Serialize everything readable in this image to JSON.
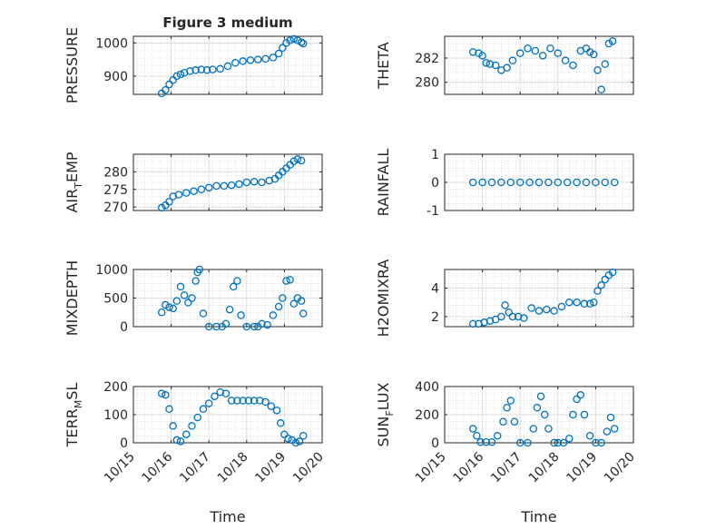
{
  "figure": {
    "title": "Figure 3 medium",
    "marker_color": "#0072BD",
    "time_tick_labels": [
      "10/15",
      "10/16",
      "10/17",
      "10/18",
      "10/19",
      "10/20"
    ],
    "xlabel": "Time"
  },
  "chart_data": [
    {
      "type": "scatter",
      "ylabel": "PRESSURE",
      "xlim": [
        0,
        5
      ],
      "ylim": [
        845,
        1020
      ],
      "yticks": [
        900,
        1000
      ],
      "ytick_labels": [
        "900",
        "1000"
      ],
      "grid": true,
      "minor_grid": true,
      "x": [
        0.75,
        0.85,
        0.95,
        1.05,
        1.15,
        1.25,
        1.35,
        1.5,
        1.65,
        1.8,
        1.95,
        2.1,
        2.3,
        2.5,
        2.7,
        2.9,
        3.1,
        3.3,
        3.5,
        3.7,
        3.85,
        3.95,
        4.05,
        4.15,
        4.25,
        4.35,
        4.45,
        4.5
      ],
      "values": [
        848,
        858,
        875,
        888,
        900,
        905,
        910,
        915,
        918,
        920,
        918,
        920,
        922,
        930,
        940,
        945,
        948,
        950,
        952,
        956,
        968,
        985,
        1000,
        1008,
        1012,
        1008,
        1002,
        998
      ]
    },
    {
      "type": "scatter",
      "ylabel": "THETA",
      "xlim": [
        0,
        5
      ],
      "ylim": [
        279,
        283.8
      ],
      "yticks": [
        280,
        282
      ],
      "ytick_labels": [
        "280",
        "282"
      ],
      "grid": true,
      "minor_grid": true,
      "x": [
        0.75,
        0.9,
        1.0,
        1.1,
        1.2,
        1.35,
        1.5,
        1.65,
        1.8,
        2.0,
        2.2,
        2.4,
        2.6,
        2.8,
        3.0,
        3.2,
        3.4,
        3.6,
        3.75,
        3.85,
        3.95,
        4.05,
        4.15,
        4.25,
        4.35,
        4.45
      ],
      "values": [
        282.5,
        282.4,
        282.2,
        281.6,
        281.5,
        281.4,
        281.0,
        281.2,
        281.8,
        282.4,
        282.8,
        282.6,
        282.2,
        282.8,
        282.4,
        281.8,
        281.4,
        282.6,
        282.8,
        282.5,
        282.3,
        281.0,
        279.4,
        281.5,
        283.2,
        283.4
      ]
    },
    {
      "type": "scatter",
      "ylabel": "AIR_TEMP",
      "xlim": [
        0,
        5
      ],
      "ylim": [
        269,
        285
      ],
      "yticks": [
        270,
        275,
        280
      ],
      "ytick_labels": [
        "270",
        "275",
        "280"
      ],
      "grid": true,
      "minor_grid": true,
      "x": [
        0.75,
        0.85,
        0.95,
        1.05,
        1.2,
        1.4,
        1.6,
        1.8,
        2.0,
        2.2,
        2.4,
        2.6,
        2.8,
        3.0,
        3.2,
        3.4,
        3.6,
        3.75,
        3.85,
        3.95,
        4.05,
        4.15,
        4.25,
        4.35,
        4.45
      ],
      "values": [
        269.8,
        270.5,
        271.5,
        273.0,
        273.5,
        274.0,
        274.5,
        275.0,
        275.5,
        276.0,
        276.0,
        276.2,
        276.5,
        277.0,
        277.2,
        277.0,
        277.5,
        278.0,
        279.0,
        280.0,
        281.0,
        282.0,
        283.0,
        283.6,
        283.2
      ]
    },
    {
      "type": "scatter",
      "ylabel": "RAINFALL",
      "xlim": [
        0,
        5
      ],
      "ylim": [
        -1,
        1
      ],
      "yticks": [
        -1,
        0,
        1
      ],
      "ytick_labels": [
        "-1",
        "0",
        "1"
      ],
      "grid": true,
      "minor_grid": true,
      "x": [
        0.75,
        1.0,
        1.25,
        1.5,
        1.75,
        2.0,
        2.25,
        2.5,
        2.75,
        3.0,
        3.25,
        3.5,
        3.75,
        4.0,
        4.25,
        4.5
      ],
      "values": [
        0,
        0,
        0,
        0,
        0,
        0,
        0,
        0,
        0,
        0,
        0,
        0,
        0,
        0,
        0,
        0
      ]
    },
    {
      "type": "scatter",
      "ylabel": "MIXDEPTH",
      "xlim": [
        0,
        5
      ],
      "ylim": [
        0,
        1000
      ],
      "yticks": [
        0,
        500,
        1000
      ],
      "ytick_labels": [
        "0",
        "500",
        "1000"
      ],
      "grid": true,
      "minor_grid": true,
      "x": [
        0.75,
        0.85,
        0.95,
        1.05,
        1.15,
        1.25,
        1.35,
        1.45,
        1.55,
        1.65,
        1.7,
        1.75,
        1.85,
        2.0,
        2.2,
        2.35,
        2.45,
        2.55,
        2.65,
        2.75,
        2.85,
        3.0,
        3.2,
        3.3,
        3.4,
        3.55,
        3.7,
        3.85,
        3.95,
        4.05,
        4.15,
        4.25,
        4.35,
        4.45,
        4.5
      ],
      "values": [
        250,
        380,
        340,
        320,
        450,
        700,
        550,
        420,
        500,
        800,
        950,
        1000,
        230,
        0,
        0,
        0,
        50,
        300,
        700,
        800,
        200,
        0,
        0,
        0,
        50,
        30,
        200,
        350,
        500,
        800,
        820,
        400,
        500,
        450,
        230
      ]
    },
    {
      "type": "scatter",
      "ylabel": "H2OMIXRA",
      "xlim": [
        0,
        5
      ],
      "ylim": [
        1.3,
        5.3
      ],
      "yticks": [
        2,
        4
      ],
      "ytick_labels": [
        "2",
        "4"
      ],
      "grid": true,
      "minor_grid": true,
      "x": [
        0.75,
        0.9,
        1.05,
        1.2,
        1.35,
        1.5,
        1.6,
        1.7,
        1.8,
        1.95,
        2.1,
        2.3,
        2.5,
        2.7,
        2.9,
        3.1,
        3.3,
        3.5,
        3.7,
        3.85,
        3.95,
        4.05,
        4.15,
        4.25,
        4.35,
        4.45
      ],
      "values": [
        1.5,
        1.5,
        1.6,
        1.7,
        1.8,
        2.0,
        2.8,
        2.3,
        2.0,
        2.0,
        1.9,
        2.6,
        2.4,
        2.5,
        2.4,
        2.7,
        3.0,
        3.0,
        2.9,
        2.9,
        3.0,
        3.8,
        4.2,
        4.6,
        4.9,
        5.1
      ]
    },
    {
      "type": "scatter",
      "ylabel": "TERR_MSL",
      "xlim": [
        0,
        5
      ],
      "ylim": [
        0,
        200
      ],
      "yticks": [
        0,
        100,
        200
      ],
      "ytick_labels": [
        "0",
        "100",
        "200"
      ],
      "grid": true,
      "minor_grid": true,
      "x": [
        0.75,
        0.85,
        0.95,
        1.05,
        1.15,
        1.25,
        1.4,
        1.55,
        1.7,
        1.85,
        2.0,
        2.15,
        2.3,
        2.45,
        2.6,
        2.75,
        2.9,
        3.05,
        3.2,
        3.35,
        3.5,
        3.65,
        3.8,
        3.9,
        4.0,
        4.1,
        4.2,
        4.3,
        4.4,
        4.5
      ],
      "values": [
        175,
        170,
        120,
        60,
        10,
        5,
        30,
        60,
        90,
        120,
        140,
        165,
        180,
        175,
        150,
        150,
        150,
        150,
        150,
        150,
        145,
        130,
        115,
        70,
        30,
        15,
        10,
        0,
        5,
        25
      ]
    },
    {
      "type": "scatter",
      "ylabel": "SUN_FLUX",
      "xlim": [
        0,
        5
      ],
      "ylim": [
        0,
        400
      ],
      "yticks": [
        0,
        200,
        400
      ],
      "ytick_labels": [
        "0",
        "200",
        "400"
      ],
      "grid": true,
      "minor_grid": true,
      "x": [
        0.75,
        0.85,
        0.95,
        1.1,
        1.25,
        1.4,
        1.55,
        1.65,
        1.75,
        1.85,
        2.0,
        2.2,
        2.35,
        2.45,
        2.55,
        2.65,
        2.75,
        2.9,
        3.0,
        3.15,
        3.3,
        3.4,
        3.5,
        3.6,
        3.7,
        3.85,
        4.0,
        4.15,
        4.3,
        4.4,
        4.5
      ],
      "values": [
        100,
        50,
        5,
        5,
        5,
        50,
        150,
        250,
        300,
        150,
        0,
        0,
        100,
        250,
        330,
        200,
        100,
        0,
        0,
        0,
        30,
        200,
        310,
        340,
        200,
        50,
        0,
        0,
        80,
        180,
        100
      ]
    }
  ]
}
